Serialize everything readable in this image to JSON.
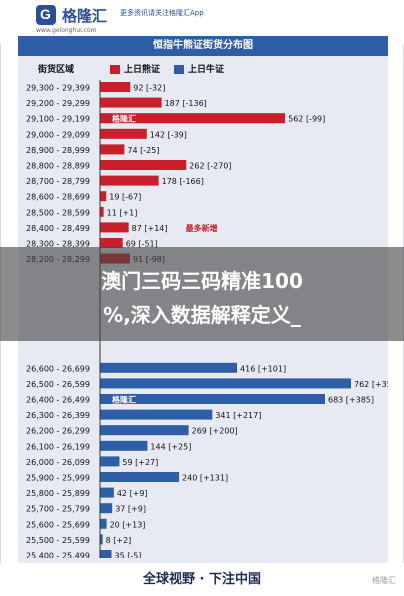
{
  "header": {
    "brand": "格隆汇",
    "tagline": "更多资讯请关注格隆汇App",
    "site": "www.gelonghui.com"
  },
  "chart_data": {
    "type": "bar",
    "title": "恒指牛熊证街货分布图",
    "category_header": "街货区域",
    "xlabel": "相对期指张数 [括号内为一日变化]",
    "xlim": [
      0,
      850
    ],
    "xticks": [
      0,
      100,
      200,
      300,
      400,
      500,
      600,
      700,
      800
    ],
    "legend": [
      {
        "name": "上日熊证",
        "color": "#c8202a"
      },
      {
        "name": "上日牛证",
        "color": "#2f5ea9"
      }
    ],
    "groups": [
      {
        "name": "上日熊证",
        "color": "#c8202a",
        "rows": [
          {
            "range": "29,300 - 29,399",
            "value": 92,
            "label": "92 [-32]"
          },
          {
            "range": "29,200 - 29,299",
            "value": 187,
            "label": "187 [-136]"
          },
          {
            "range": "29,100 - 29,199",
            "value": 562,
            "label": "562 [-99]"
          },
          {
            "range": "29,000 - 29,099",
            "value": 142,
            "label": "142 [-39]"
          },
          {
            "range": "28,900 - 28,999",
            "value": 74,
            "label": "74 [-25]"
          },
          {
            "range": "28,800 - 28,899",
            "value": 262,
            "label": "262 [-270]"
          },
          {
            "range": "28,700 - 28,799",
            "value": 178,
            "label": "178 [-166]"
          },
          {
            "range": "28,600 - 28,699",
            "value": 19,
            "label": "19 [-67]"
          },
          {
            "range": "28,500 - 28,599",
            "value": 11,
            "label": "11 [+1]"
          },
          {
            "range": "28,400 - 28,499",
            "value": 87,
            "label": "87 [+14]"
          },
          {
            "range": "28,300 - 28,399",
            "value": 69,
            "label": "69 [-51]"
          },
          {
            "range": "28,200 - 28,299",
            "value": 91,
            "label": "91 [-98]"
          }
        ]
      },
      {
        "name": "上日牛证",
        "color": "#2f5ea9",
        "rows": [
          {
            "range": "26,600 - 26,699",
            "value": 416,
            "label": "416 [+101]"
          },
          {
            "range": "26,500 - 26,599",
            "value": 762,
            "label": "762 [+356]"
          },
          {
            "range": "26,400 - 26,499",
            "value": 683,
            "label": "683 [+385]"
          },
          {
            "range": "26,300 - 26,399",
            "value": 341,
            "label": "341 [+217]"
          },
          {
            "range": "26,200 - 26,299",
            "value": 269,
            "label": "269 [+200]"
          },
          {
            "range": "26,100 - 26,199",
            "value": 144,
            "label": "144 [+25]"
          },
          {
            "range": "26,000 - 26,099",
            "value": 59,
            "label": "59 [+27]"
          },
          {
            "range": "25,900 - 25,999",
            "value": 240,
            "label": "240 [+131]"
          },
          {
            "range": "25,800 - 25,899",
            "value": 42,
            "label": "42 [+9]"
          },
          {
            "range": "25,700 - 25,799",
            "value": 37,
            "label": "37 [+9]"
          },
          {
            "range": "25,600 - 25,699",
            "value": 20,
            "label": "20 [+13]"
          },
          {
            "range": "25,500 - 25,599",
            "value": 8,
            "label": "8 [+2]"
          },
          {
            "range": "25,400 - 25,499",
            "value": 35,
            "label": "35 [-5]"
          },
          {
            "range": "25,300 - 25,399",
            "value": 3,
            "label": "3 [+0]"
          }
        ]
      }
    ],
    "annotations": [
      {
        "text": "最多新增",
        "at": "28,400 - 28,499",
        "color": "#c8202a"
      },
      {
        "text": "格隆汇",
        "at": "29,100 - 29,199",
        "color": "#ffffff"
      },
      {
        "text": "格隆汇",
        "at": "26,400 - 26,499",
        "color": "#ffffff"
      }
    ],
    "grid": false
  },
  "overlay": {
    "line1": "澳门三码三码精准100",
    "line2": "%,深入数据解释定义_"
  },
  "footer": {
    "slogan": "全球视野 · 下注中国",
    "watermark": "格隆汇"
  }
}
